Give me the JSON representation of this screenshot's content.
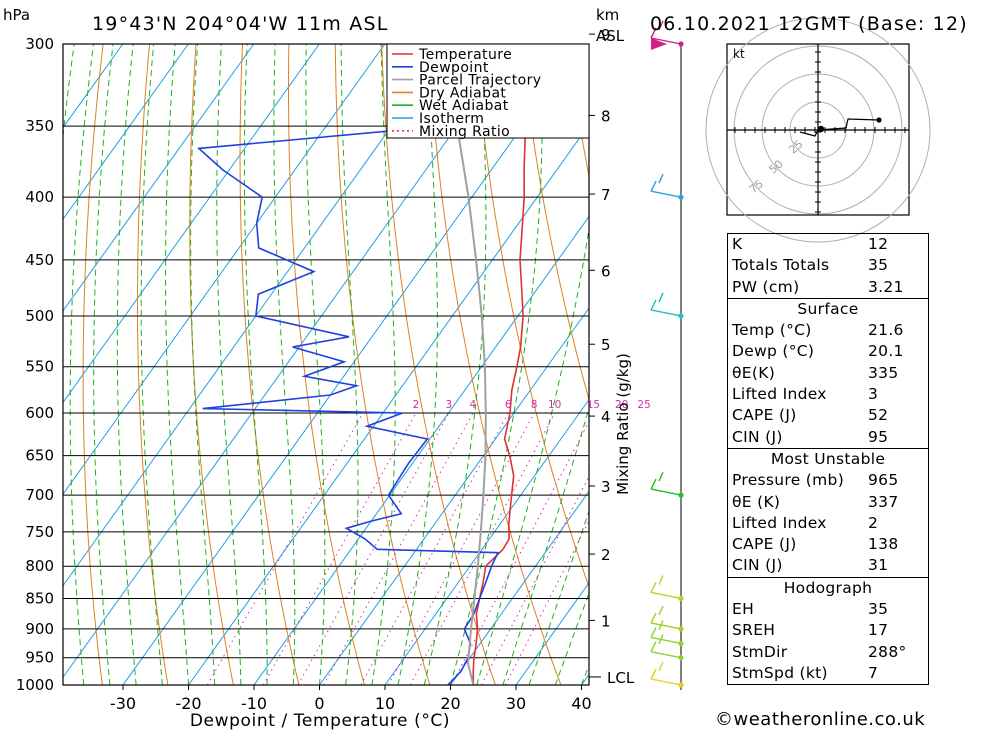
{
  "header": {
    "location": "19°43'N  204°04'W  11m  ASL",
    "datetime": "06.10.2021  12GMT  (Base: 12)",
    "pressure_unit": "hPa",
    "km_label": "km",
    "asl_label": "ASL"
  },
  "chart_data": {
    "type": "skew-t",
    "xlabel": "Dewpoint / Temperature (°C)",
    "ylabel_right": "Mixing Ratio (g/kg)",
    "pressure_levels": [
      300,
      350,
      400,
      450,
      500,
      550,
      600,
      650,
      700,
      750,
      800,
      850,
      900,
      950,
      1000
    ],
    "pressure_range": [
      300,
      1000
    ],
    "temperature_ticks": [
      -30,
      -20,
      -10,
      0,
      10,
      20,
      30,
      40
    ],
    "km_ticks": [
      1,
      2,
      3,
      4,
      5,
      6,
      7,
      8,
      9
    ],
    "lcl_label": "LCL",
    "mixing_ratio_labels": [
      "2",
      "3",
      "4",
      "6",
      "8",
      "10",
      "15",
      "20",
      "25"
    ],
    "legend": [
      {
        "name": "Temperature",
        "color": "#e03030",
        "style": "solid"
      },
      {
        "name": "Dewpoint",
        "color": "#2040e0",
        "style": "solid"
      },
      {
        "name": "Parcel Trajectory",
        "color": "#a0a0a0",
        "style": "solid"
      },
      {
        "name": "Dry Adiabat",
        "color": "#e08020",
        "style": "solid"
      },
      {
        "name": "Wet Adiabat",
        "color": "#20b020",
        "style": "solid"
      },
      {
        "name": "Isotherm",
        "color": "#20a0e0",
        "style": "solid"
      },
      {
        "name": "Mixing Ratio",
        "color": "#d030a0",
        "style": "dotted"
      }
    ],
    "series": [
      {
        "name": "Temperature",
        "color": "#e03030",
        "points": [
          [
            1000,
            23.5
          ],
          [
            975,
            22.0
          ],
          [
            950,
            20.6
          ],
          [
            925,
            19.4
          ],
          [
            900,
            18.0
          ],
          [
            875,
            16.2
          ],
          [
            850,
            15.0
          ],
          [
            825,
            13.8
          ],
          [
            800,
            12.4
          ],
          [
            775,
            13.2
          ],
          [
            760,
            13.0
          ],
          [
            740,
            11.4
          ],
          [
            720,
            10.0
          ],
          [
            700,
            8.6
          ],
          [
            675,
            6.8
          ],
          [
            650,
            4.0
          ],
          [
            630,
            1.4
          ],
          [
            615,
            0.4
          ],
          [
            600,
            -0.6
          ],
          [
            575,
            -2.8
          ],
          [
            550,
            -4.6
          ],
          [
            530,
            -6.2
          ],
          [
            500,
            -9.2
          ],
          [
            475,
            -12.4
          ],
          [
            450,
            -15.8
          ],
          [
            425,
            -18.8
          ],
          [
            400,
            -22.0
          ],
          [
            380,
            -25.0
          ],
          [
            360,
            -28.0
          ],
          [
            340,
            -31.4
          ],
          [
            320,
            -35.0
          ],
          [
            300,
            -39.0
          ]
        ]
      },
      {
        "name": "Dewpoint",
        "color": "#2040e0",
        "points": [
          [
            1000,
            19.6
          ],
          [
            975,
            20.1
          ],
          [
            950,
            19.7
          ],
          [
            925,
            18.5
          ],
          [
            900,
            16.0
          ],
          [
            875,
            15.8
          ],
          [
            850,
            15.0
          ],
          [
            825,
            14.2
          ],
          [
            800,
            13.3
          ],
          [
            780,
            12.8
          ],
          [
            775,
            -6.0
          ],
          [
            760,
            -9.0
          ],
          [
            745,
            -13.0
          ],
          [
            735,
            -10.0
          ],
          [
            725,
            -6.2
          ],
          [
            700,
            -10.2
          ],
          [
            660,
            -10.6
          ],
          [
            630,
            -10.4
          ],
          [
            615,
            -21.0
          ],
          [
            600,
            -17.0
          ],
          [
            595,
            -48.0
          ],
          [
            580,
            -30.0
          ],
          [
            570,
            -27.0
          ],
          [
            560,
            -36.0
          ],
          [
            545,
            -31.5
          ],
          [
            530,
            -41.0
          ],
          [
            520,
            -33.5
          ],
          [
            500,
            -50.0
          ],
          [
            480,
            -52.0
          ],
          [
            460,
            -46.0
          ],
          [
            440,
            -57.0
          ],
          [
            420,
            -60.0
          ],
          [
            400,
            -62.0
          ],
          [
            380,
            -71.0
          ],
          [
            365,
            -77.0
          ],
          [
            350,
            -42.0
          ],
          [
            340,
            -43.0
          ],
          [
            330,
            -48.0
          ],
          [
            310,
            -53.0
          ],
          [
            300,
            -53.0
          ]
        ]
      },
      {
        "name": "Parcel Trajectory",
        "color": "#a0a0a0",
        "points": [
          [
            1000,
            23.5
          ],
          [
            975,
            21.5
          ],
          [
            960,
            20.3
          ],
          [
            900,
            17.0
          ],
          [
            850,
            14.2
          ],
          [
            800,
            11.2
          ],
          [
            750,
            7.9
          ],
          [
            700,
            4.3
          ],
          [
            650,
            0.3
          ],
          [
            600,
            -4.3
          ],
          [
            550,
            -9.5
          ],
          [
            500,
            -15.5
          ],
          [
            450,
            -22.5
          ],
          [
            400,
            -30.5
          ],
          [
            350,
            -40.0
          ],
          [
            300,
            -51.0
          ]
        ]
      }
    ]
  },
  "hodograph": {
    "unit_label": "kt",
    "ring_labels": [
      "25",
      "50",
      "75"
    ]
  },
  "stats": {
    "indices": [
      {
        "label": "K",
        "value": "12"
      },
      {
        "label": "Totals Totals",
        "value": "35"
      },
      {
        "label": "PW (cm)",
        "value": "3.21"
      }
    ],
    "surface": {
      "title": "Surface",
      "rows": [
        {
          "label": "Temp (°C)",
          "value": "21.6"
        },
        {
          "label": "Dewp (°C)",
          "value": "20.1"
        },
        {
          "label": "θE(K)",
          "value": "335"
        },
        {
          "label": "Lifted Index",
          "value": "3"
        },
        {
          "label": "CAPE (J)",
          "value": "52"
        },
        {
          "label": "CIN (J)",
          "value": "95"
        }
      ]
    },
    "most_unstable": {
      "title": "Most Unstable",
      "rows": [
        {
          "label": "Pressure (mb)",
          "value": "965"
        },
        {
          "label": "θE (K)",
          "value": "337"
        },
        {
          "label": "Lifted Index",
          "value": "2"
        },
        {
          "label": "CAPE (J)",
          "value": "138"
        },
        {
          "label": "CIN (J)",
          "value": "31"
        }
      ]
    },
    "hodograph": {
      "title": "Hodograph",
      "rows": [
        {
          "label": "EH",
          "value": "35"
        },
        {
          "label": "SREH",
          "value": "17"
        },
        {
          "label": "StmDir",
          "value": "288°"
        },
        {
          "label": "StmSpd (kt)",
          "value": "7"
        }
      ]
    }
  },
  "footer": "©weatheronline.co.uk"
}
